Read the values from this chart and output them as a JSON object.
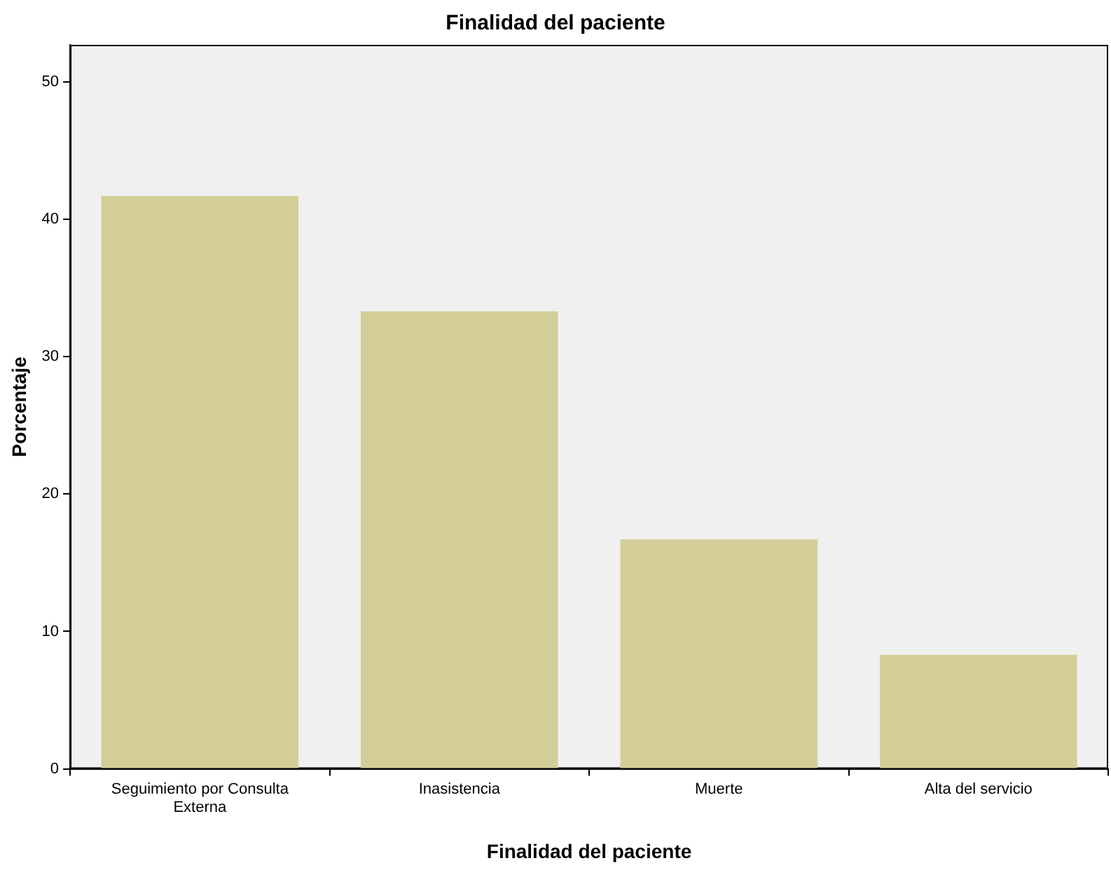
{
  "chart_data": {
    "type": "bar",
    "title": "Finalidad del paciente",
    "xlabel": "Finalidad del paciente",
    "ylabel": "Porcentaje",
    "categories": [
      "Seguimiento por Consulta Externa",
      "Inasistencia",
      "Muerte",
      "Alta del servicio"
    ],
    "values": [
      41.7,
      33.3,
      16.7,
      8.3
    ],
    "color": "#d3ce97",
    "ylim": [
      0,
      52.7
    ],
    "yticks": [
      0,
      10,
      20,
      30,
      40,
      50
    ],
    "grid": false,
    "legend": false
  }
}
